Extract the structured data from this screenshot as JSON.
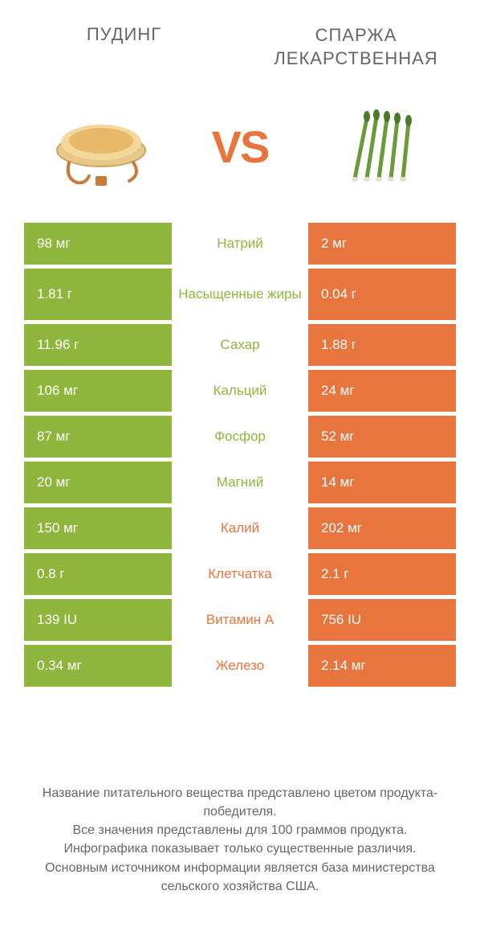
{
  "colors": {
    "green": "#8fb63c",
    "orange": "#e8743e",
    "text": "#666666",
    "bg": "#ffffff"
  },
  "titles": {
    "left": "ПУДИНГ",
    "right": "СПАРЖА ЛЕКАРСТВЕННАЯ"
  },
  "vs": "VS",
  "rows": [
    {
      "left": "98 мг",
      "mid": "Натрий",
      "right": "2 мг",
      "winner": "left",
      "tall": false
    },
    {
      "left": "1.81 г",
      "mid": "Насыщенные жиры",
      "right": "0.04 г",
      "winner": "left",
      "tall": true
    },
    {
      "left": "11.96 г",
      "mid": "Сахар",
      "right": "1.88 г",
      "winner": "left",
      "tall": false
    },
    {
      "left": "106 мг",
      "mid": "Кальций",
      "right": "24 мг",
      "winner": "left",
      "tall": false
    },
    {
      "left": "87 мг",
      "mid": "Фосфор",
      "right": "52 мг",
      "winner": "left",
      "tall": false
    },
    {
      "left": "20 мг",
      "mid": "Магний",
      "right": "14 мг",
      "winner": "left",
      "tall": false
    },
    {
      "left": "150 мг",
      "mid": "Калий",
      "right": "202 мг",
      "winner": "right",
      "tall": false
    },
    {
      "left": "0.8 г",
      "mid": "Клетчатка",
      "right": "2.1 г",
      "winner": "right",
      "tall": false
    },
    {
      "left": "139 IU",
      "mid": "Витамин A",
      "right": "756 IU",
      "winner": "right",
      "tall": false
    },
    {
      "left": "0.34 мг",
      "mid": "Железо",
      "right": "2.14 мг",
      "winner": "right",
      "tall": false
    }
  ],
  "footer": "Название питательного вещества представлено цветом продукта-победителя.\nВсе значения представлены для 100 граммов продукта.\nИнфографика показывает только существенные различия.\nОсновным источником информации является база министерства сельского хозяйства США."
}
